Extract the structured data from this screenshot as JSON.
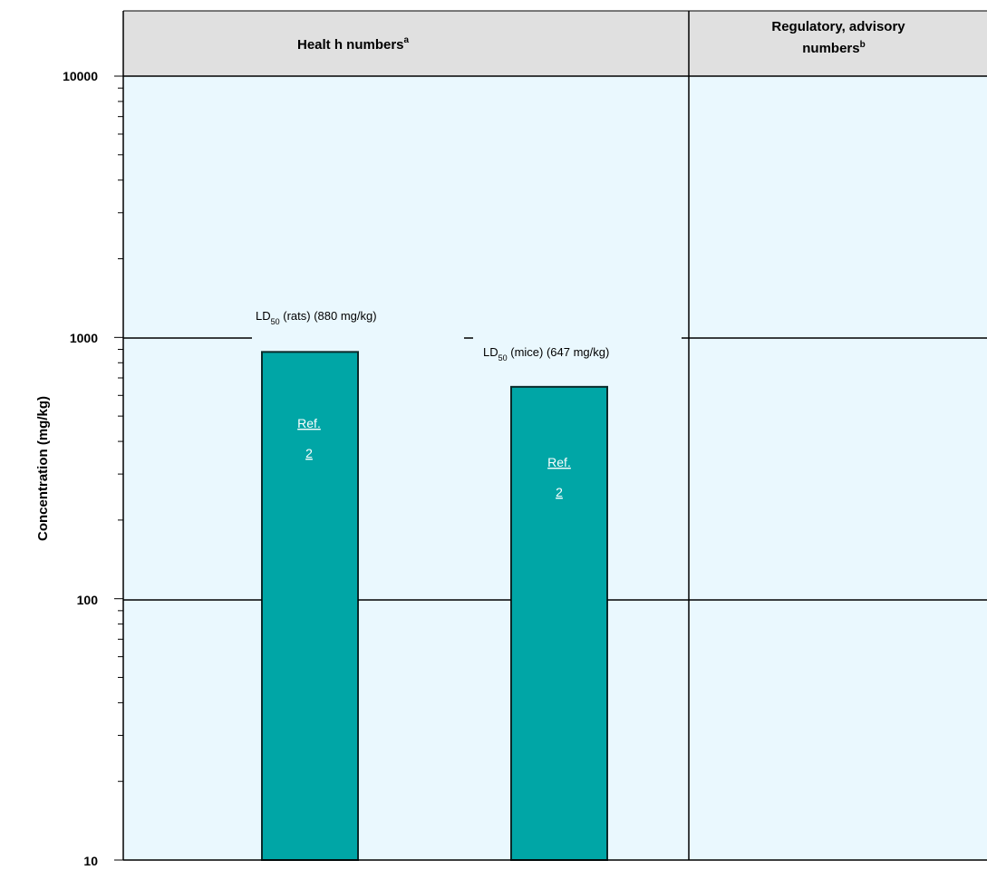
{
  "header": {
    "health_label": "Healt h numbers",
    "health_sup": "a",
    "regulatory_label_line1": "Regulatory, advisory",
    "regulatory_label_line2": "numbers",
    "regulatory_sup": "b"
  },
  "colors": {
    "plot_bg": "#eaf8fe",
    "header_bg": "#e0e0e0",
    "bar": "#00a6a6",
    "bar_edge": "#0a2a2a",
    "ref_text": "#ffffff"
  },
  "chart_data": {
    "type": "bar",
    "ylabel": "Concentration (mg/kg)",
    "yscale": "log",
    "ylim": [
      10,
      10000
    ],
    "y_ticks": [
      "10",
      "100",
      "1000",
      "10000"
    ],
    "grid": "major horizontal lines at 100 and 1000",
    "sections": [
      "Health numbers",
      "Regulatory, advisory numbers"
    ],
    "bars": [
      {
        "label_prefix": "LD",
        "label_sub": "50",
        "label_suffix": " (rats) (880 mg/kg)",
        "value": 880,
        "ref_line1": "Ref.",
        "ref_line2": "2"
      },
      {
        "label_prefix": "LD",
        "label_sub": "50",
        "label_suffix": " (mice) (647 mg/kg)",
        "value": 647,
        "ref_line1": "Ref.",
        "ref_line2": "2"
      }
    ]
  }
}
